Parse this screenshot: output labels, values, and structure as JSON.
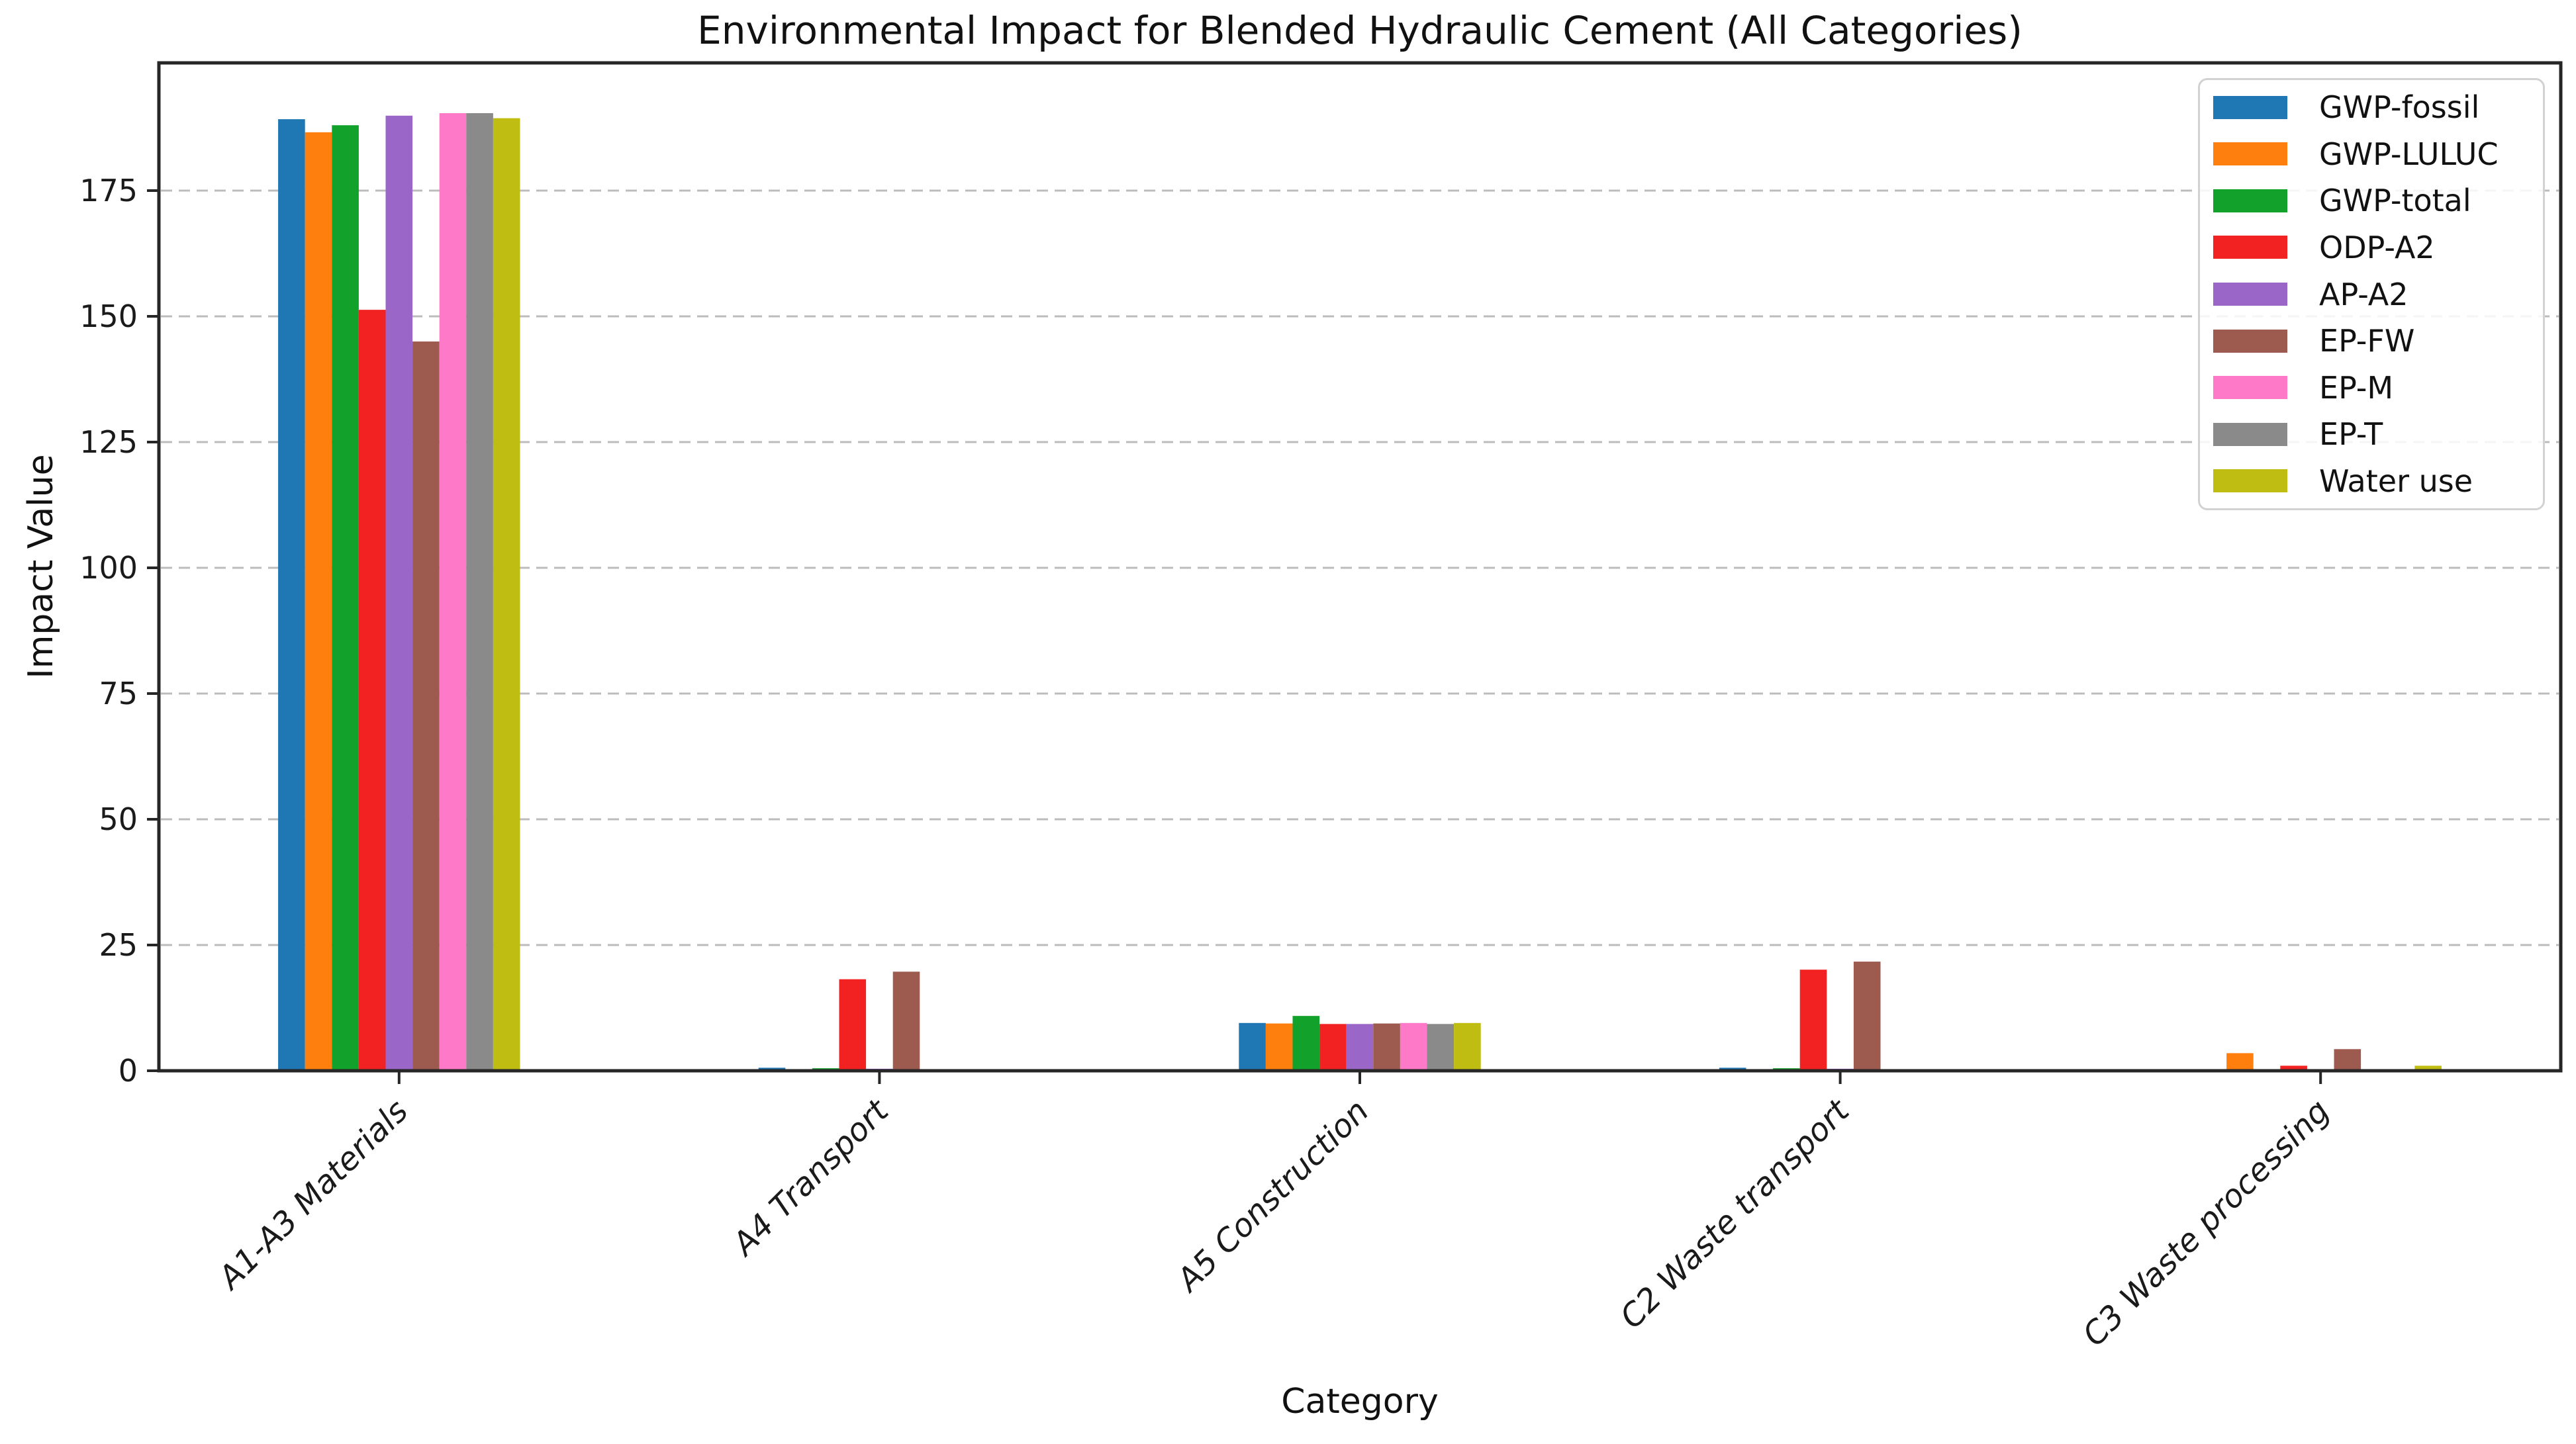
{
  "chart_data": {
    "type": "bar",
    "title": "Environmental Impact for Blended Hydraulic Cement (All Categories)",
    "xlabel": "Category",
    "ylabel": "Impact Value",
    "categories": [
      "A1-A3 Materials",
      "A4 Transport",
      "A5 Construction",
      "C2 Waste transport",
      "C3 Waste processing"
    ],
    "series": [
      {
        "name": "GWP-fossil",
        "color": "#1f77b4",
        "values": [
          189.2,
          0.6,
          9.5,
          0.6,
          0
        ]
      },
      {
        "name": "GWP-LULUC",
        "color": "#ff7f0e",
        "values": [
          186.6,
          0,
          9.4,
          0,
          3.5
        ]
      },
      {
        "name": "GWP-total",
        "color": "#12a22b",
        "values": [
          188.0,
          0.5,
          10.9,
          0.5,
          0
        ]
      },
      {
        "name": "ODP-A2",
        "color": "#f32222",
        "values": [
          151.3,
          18.2,
          9.3,
          20.1,
          1.0
        ]
      },
      {
        "name": "AP-A2",
        "color": "#9a67c9",
        "values": [
          189.9,
          0.4,
          9.3,
          0.4,
          0
        ]
      },
      {
        "name": "EP-FW",
        "color": "#9d5b50",
        "values": [
          145.0,
          19.7,
          9.4,
          21.7,
          4.3
        ]
      },
      {
        "name": "EP-M",
        "color": "#ff79c9",
        "values": [
          190.4,
          0,
          9.5,
          0,
          0
        ]
      },
      {
        "name": "EP-T",
        "color": "#8a8a8a",
        "values": [
          190.4,
          0,
          9.3,
          0,
          0
        ]
      },
      {
        "name": "Water use",
        "color": "#bfbd12",
        "values": [
          189.4,
          0,
          9.5,
          0,
          1.0
        ]
      }
    ],
    "yticks": [
      0,
      25,
      50,
      75,
      100,
      125,
      150,
      175
    ],
    "ylim": [
      0,
      200.4
    ],
    "grid": true,
    "grid_style": "dashed horizontal",
    "legend_position": "upper right",
    "xtick_style": "italic, rotated 45deg",
    "style": {
      "axis_color": "#262626",
      "grid_color": "#bcbcbc",
      "tick_label_color": "#1a1a1a",
      "background": "#ffffff"
    }
  }
}
